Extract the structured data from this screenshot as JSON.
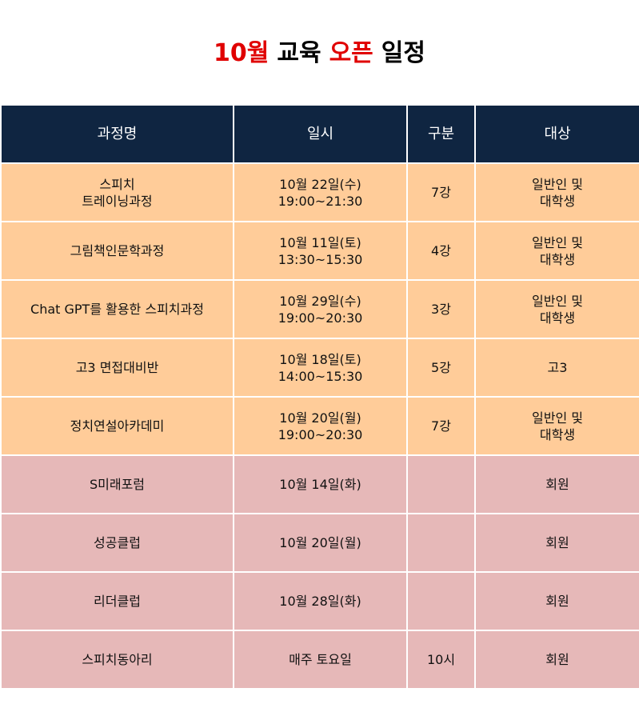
{
  "header": {
    "title": [
      {
        "text": "10월",
        "color": "#e00000"
      },
      {
        "text": "교육",
        "color": "#000000"
      },
      {
        "text": "오픈",
        "color": "#e00000"
      },
      {
        "text": "일정",
        "color": "#000000"
      }
    ]
  },
  "table": {
    "columns": [
      "과정명",
      "일시",
      "구분",
      "대상"
    ],
    "rows": [
      [
        "스피치\n트레이닝과정",
        "10월 22일(수)\n19:00~21:30",
        "7강",
        "일반인 및\n대학생"
      ],
      [
        "그림책인문학과정",
        "10월 11일(토)\n13:30~15:30",
        "4강",
        "일반인 및\n대학생"
      ],
      [
        "Chat GPT를 활용한 스피치과정",
        "10월 29일(수)\n19:00~20:30",
        "3강",
        "일반인 및\n대학생"
      ],
      [
        "고3 면접대비반",
        "10월 18일(토)\n14:00~15:30",
        "5강",
        "고3"
      ],
      [
        "정치연설아카데미",
        "10월 20일(월)\n19:00~20:30",
        "7강",
        "일반인 및\n대학생"
      ],
      [
        "S미래포럼",
        "10월 14일(화)",
        null,
        "회원"
      ],
      [
        "성공클럽",
        "10월 20일(월)",
        null,
        "회원"
      ],
      [
        "리더클럽",
        "10월 28일(화)",
        null,
        "회원"
      ],
      [
        "스피치동아리",
        "매주 토요일",
        "10시",
        "회원"
      ]
    ]
  }
}
